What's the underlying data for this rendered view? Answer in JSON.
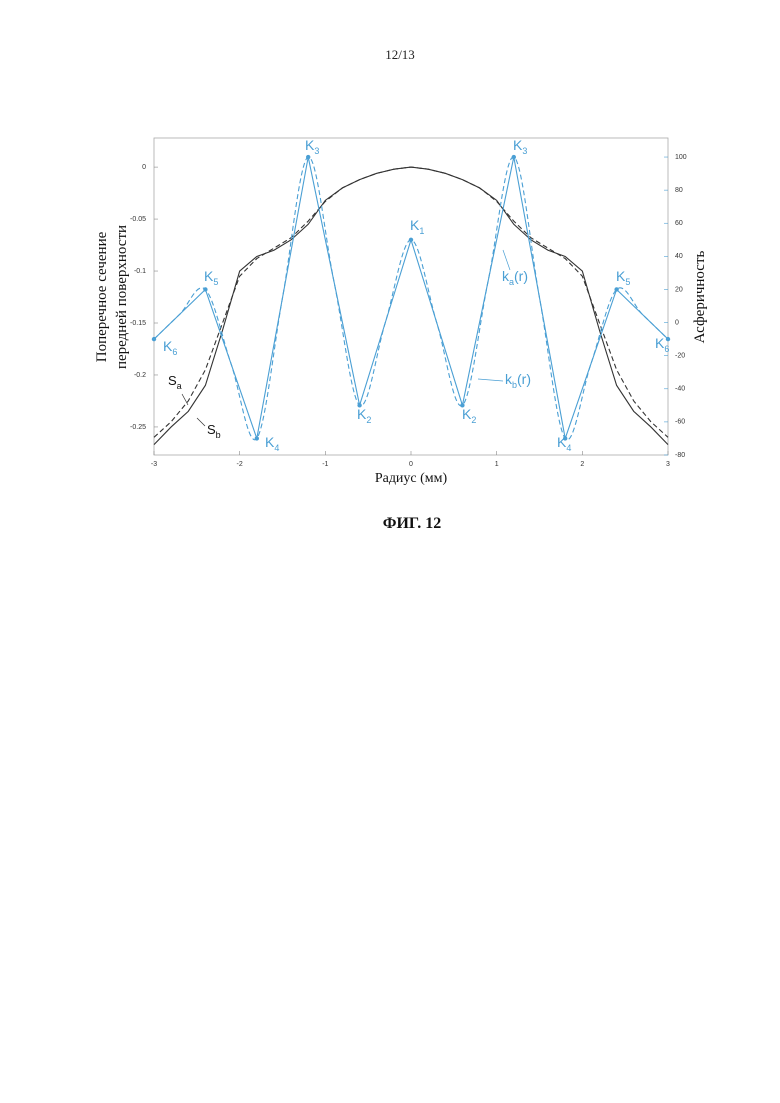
{
  "page_number": "12/13",
  "caption": "ФИГ. 12",
  "chart_data": {
    "type": "line",
    "x_label": "Радиус (мм)",
    "y_label": [
      "Поперечное сечение",
      "передней поверхности"
    ],
    "y2_label": "Асферичность",
    "xlim": [
      -3,
      3
    ],
    "xticks": [
      -3,
      -2,
      -1,
      0,
      1,
      2,
      3
    ],
    "ylim": [
      -0.277,
      0.028
    ],
    "yticks": [
      -0.25,
      -0.2,
      -0.15,
      -0.1,
      -0.05,
      0
    ],
    "y2lim": [
      -80,
      111.5
    ],
    "y2ticks": [
      -80,
      -60,
      -40,
      -20,
      0,
      20,
      40,
      60,
      80,
      100
    ],
    "series": [
      {
        "name": "Sa",
        "color": "#333333",
        "dash": false,
        "x": [
          -3,
          -2.8,
          -2.6,
          -2.4,
          -2.2,
          -2,
          -1.8,
          -1.6,
          -1.4,
          -1.2,
          -1,
          -0.8,
          -0.6,
          -0.4,
          -0.2,
          0,
          0.2,
          0.4,
          0.6,
          0.8,
          1,
          1.2,
          1.4,
          1.6,
          1.8,
          2,
          2.2,
          2.4,
          2.6,
          2.8,
          3
        ],
        "values": [
          -0.267,
          -0.25,
          -0.235,
          -0.21,
          -0.157,
          -0.1,
          -0.086,
          -0.08,
          -0.07,
          -0.055,
          -0.032,
          -0.02,
          -0.012,
          -0.006,
          -0.002,
          0,
          -0.002,
          -0.006,
          -0.012,
          -0.02,
          -0.032,
          -0.055,
          -0.07,
          -0.08,
          -0.086,
          -0.1,
          -0.157,
          -0.21,
          -0.235,
          -0.25,
          -0.267
        ]
      },
      {
        "name": "Sb",
        "color": "#333333",
        "dash": true,
        "x": [
          -3,
          -2.8,
          -2.6,
          -2.4,
          -2.2,
          -2,
          -1.8,
          -1.6,
          -1.4,
          -1.2,
          -1,
          -0.8,
          -0.6,
          -0.4,
          -0.2,
          0,
          0.2,
          0.4,
          0.6,
          0.8,
          1,
          1.2,
          1.4,
          1.6,
          1.8,
          2,
          2.2,
          2.4,
          2.6,
          2.8,
          3
        ],
        "values": [
          -0.26,
          -0.245,
          -0.225,
          -0.195,
          -0.15,
          -0.105,
          -0.088,
          -0.078,
          -0.068,
          -0.052,
          -0.033,
          -0.02,
          -0.012,
          -0.006,
          -0.002,
          0,
          -0.002,
          -0.006,
          -0.012,
          -0.02,
          -0.033,
          -0.052,
          -0.068,
          -0.078,
          -0.088,
          -0.105,
          -0.15,
          -0.195,
          -0.225,
          -0.245,
          -0.26
        ]
      },
      {
        "name": "ka(r)",
        "color": "#4a9fd4",
        "dash": false,
        "axis": "y2",
        "markers": true,
        "x": [
          -3,
          -2.4,
          -1.8,
          -1.2,
          -0.6,
          0,
          0.6,
          1.2,
          1.8,
          2.4,
          3
        ],
        "values": [
          -10,
          20,
          -70,
          100,
          -50,
          50,
          -50,
          100,
          -70,
          20,
          -10
        ]
      },
      {
        "name": "kb(r)",
        "color": "#4a9fd4",
        "dash": true,
        "axis": "y2",
        "smooth": true,
        "x": [
          -3,
          -2.7,
          -2.4,
          -2.1,
          -1.8,
          -1.5,
          -1.2,
          -0.9,
          -0.6,
          -0.3,
          0,
          0.3,
          0.6,
          0.9,
          1.2,
          1.5,
          1.8,
          2.1,
          2.4,
          2.7,
          3
        ],
        "values": [
          -10,
          5,
          20,
          -25,
          -70,
          15,
          100,
          25,
          -50,
          0,
          50,
          0,
          -50,
          25,
          100,
          15,
          -70,
          -25,
          20,
          5,
          -10
        ]
      }
    ],
    "annotations": [
      {
        "base": "K",
        "sub": "3"
      },
      {
        "base": "K",
        "sub": "3"
      },
      {
        "base": "K",
        "sub": "1"
      },
      {
        "base": "K",
        "sub": "5"
      },
      {
        "base": "K",
        "sub": "5"
      },
      {
        "base": "K",
        "sub": "6"
      },
      {
        "base": "K",
        "sub": "6"
      },
      {
        "base": "K",
        "sub": "2"
      },
      {
        "base": "K",
        "sub": "2"
      },
      {
        "base": "K",
        "sub": "4"
      },
      {
        "base": "K",
        "sub": "4"
      },
      {
        "base": "k",
        "sub": "a",
        "rest": "(r)"
      },
      {
        "base": "k",
        "sub": "b",
        "rest": "(r)"
      },
      {
        "base": "S",
        "sub": "a"
      },
      {
        "base": "S",
        "sub": "b"
      }
    ]
  }
}
